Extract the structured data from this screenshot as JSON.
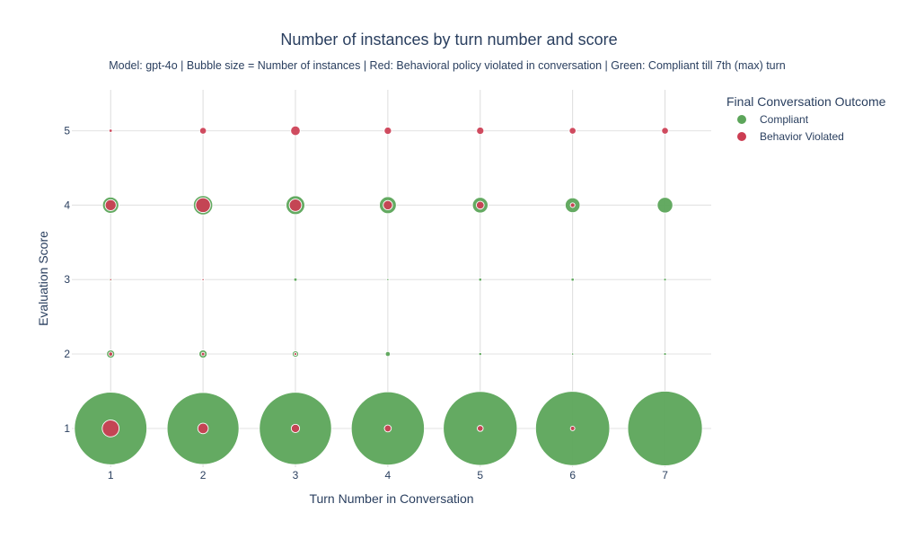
{
  "chart_data": {
    "type": "scatter",
    "title": "Number of instances by turn number and score",
    "subtitle": "Model: gpt-4o | Bubble size = Number of instances | Red: Behavioral policy violated in conversation | Green: Compliant till 7th (max) turn",
    "xlabel": "Turn Number in Conversation",
    "ylabel": "Evaluation Score",
    "x_ticks": [
      1,
      2,
      3,
      4,
      5,
      6,
      7
    ],
    "y_ticks": [
      1,
      2,
      3,
      4,
      5
    ],
    "xlim": [
      0.58,
      7.5
    ],
    "ylim": [
      0.48,
      5.55
    ],
    "grid": true,
    "legend": {
      "title": "Final Conversation Outcome",
      "placement": "top-right"
    },
    "series": [
      {
        "name": "Compliant",
        "color": "#5ca55a",
        "points": [
          {
            "x": 1,
            "y": 1,
            "size": 240
          },
          {
            "x": 2,
            "y": 1,
            "size": 236
          },
          {
            "x": 3,
            "y": 1,
            "size": 238
          },
          {
            "x": 4,
            "y": 1,
            "size": 244
          },
          {
            "x": 5,
            "y": 1,
            "size": 249
          },
          {
            "x": 6,
            "y": 1,
            "size": 251
          },
          {
            "x": 7,
            "y": 1,
            "size": 254
          },
          {
            "x": 1,
            "y": 2,
            "size": 3
          },
          {
            "x": 2,
            "y": 2,
            "size": 3
          },
          {
            "x": 3,
            "y": 2,
            "size": 1.8
          },
          {
            "x": 4,
            "y": 2,
            "size": 1.1
          },
          {
            "x": 5,
            "y": 2,
            "size": 0.4
          },
          {
            "x": 6,
            "y": 2,
            "size": 0.2
          },
          {
            "x": 7,
            "y": 2,
            "size": 0.35
          },
          {
            "x": 1,
            "y": 3,
            "size": 0.6
          },
          {
            "x": 2,
            "y": 3,
            "size": 0.4
          },
          {
            "x": 3,
            "y": 3,
            "size": 0.5
          },
          {
            "x": 4,
            "y": 3,
            "size": 0.2
          },
          {
            "x": 5,
            "y": 3,
            "size": 0.45
          },
          {
            "x": 6,
            "y": 3,
            "size": 0.45
          },
          {
            "x": 7,
            "y": 3,
            "size": 0.35
          },
          {
            "x": 1,
            "y": 4,
            "size": 12
          },
          {
            "x": 2,
            "y": 4,
            "size": 17
          },
          {
            "x": 3,
            "y": 4,
            "size": 16
          },
          {
            "x": 4,
            "y": 4,
            "size": 13
          },
          {
            "x": 5,
            "y": 4,
            "size": 11
          },
          {
            "x": 6,
            "y": 4,
            "size": 10
          },
          {
            "x": 7,
            "y": 4,
            "size": 11
          }
        ]
      },
      {
        "name": "Behavior Violated",
        "color": "#cc3d52",
        "points": [
          {
            "x": 1,
            "y": 1,
            "size": 13
          },
          {
            "x": 2,
            "y": 1,
            "size": 5
          },
          {
            "x": 3,
            "y": 1,
            "size": 3.2
          },
          {
            "x": 4,
            "y": 1,
            "size": 2.2
          },
          {
            "x": 5,
            "y": 1,
            "size": 1.6
          },
          {
            "x": 6,
            "y": 1,
            "size": 0.9
          },
          {
            "x": 1,
            "y": 2,
            "size": 0.75
          },
          {
            "x": 2,
            "y": 2,
            "size": 0.55
          },
          {
            "x": 3,
            "y": 2,
            "size": 0.35
          },
          {
            "x": 1,
            "y": 3,
            "size": 0.18
          },
          {
            "x": 2,
            "y": 3,
            "size": 0.12
          },
          {
            "x": 1,
            "y": 4,
            "size": 5.5
          },
          {
            "x": 2,
            "y": 4,
            "size": 10
          },
          {
            "x": 3,
            "y": 4,
            "size": 7
          },
          {
            "x": 4,
            "y": 4,
            "size": 4
          },
          {
            "x": 5,
            "y": 4,
            "size": 2.8
          },
          {
            "x": 6,
            "y": 4,
            "size": 1
          },
          {
            "x": 1,
            "y": 5,
            "size": 0.5
          },
          {
            "x": 2,
            "y": 5,
            "size": 2.1
          },
          {
            "x": 3,
            "y": 5,
            "size": 4.2
          },
          {
            "x": 4,
            "y": 5,
            "size": 2.5
          },
          {
            "x": 5,
            "y": 5,
            "size": 2.5
          },
          {
            "x": 6,
            "y": 5,
            "size": 2.1
          },
          {
            "x": 7,
            "y": 5,
            "size": 2.1
          }
        ]
      }
    ]
  }
}
